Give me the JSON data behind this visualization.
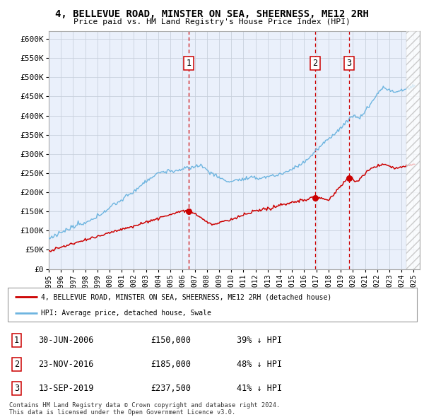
{
  "title": "4, BELLEVUE ROAD, MINSTER ON SEA, SHEERNESS, ME12 2RH",
  "subtitle": "Price paid vs. HM Land Registry's House Price Index (HPI)",
  "ylim": [
    0,
    620000
  ],
  "yticks": [
    0,
    50000,
    100000,
    150000,
    200000,
    250000,
    300000,
    350000,
    400000,
    450000,
    500000,
    550000,
    600000
  ],
  "ytick_labels": [
    "£0",
    "£50K",
    "£100K",
    "£150K",
    "£200K",
    "£250K",
    "£300K",
    "£350K",
    "£400K",
    "£450K",
    "£500K",
    "£550K",
    "£600K"
  ],
  "hpi_color": "#6EB5E0",
  "price_color": "#CC0000",
  "vline_color": "#CC0000",
  "bg_color": "#EAF0FB",
  "sale_prices": [
    150000,
    185000,
    237500
  ],
  "sale_year_floats": [
    2006.5,
    2016.9,
    2019.7
  ],
  "sale_labels": [
    "1",
    "2",
    "3"
  ],
  "legend_label_price": "4, BELLEVUE ROAD, MINSTER ON SEA, SHEERNESS, ME12 2RH (detached house)",
  "legend_label_hpi": "HPI: Average price, detached house, Swale",
  "table_entries": [
    [
      "1",
      "30-JUN-2006",
      "£150,000",
      "39% ↓ HPI"
    ],
    [
      "2",
      "23-NOV-2016",
      "£185,000",
      "48% ↓ HPI"
    ],
    [
      "3",
      "13-SEP-2019",
      "£237,500",
      "41% ↓ HPI"
    ]
  ],
  "footnote": "Contains HM Land Registry data © Crown copyright and database right 2024.\nThis data is licensed under the Open Government Licence v3.0.",
  "xlim_start": 1995.0,
  "xlim_end": 2025.5,
  "hatch_start": 2024.4
}
